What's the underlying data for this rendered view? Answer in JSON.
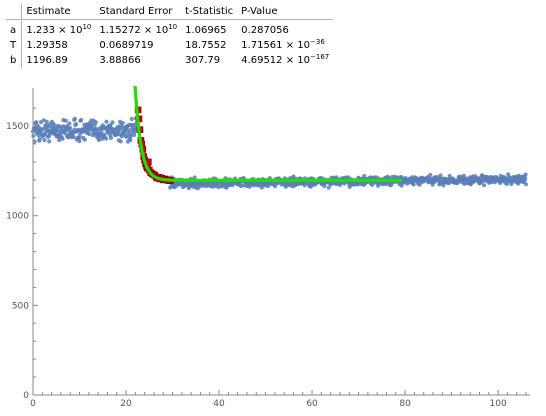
{
  "fit_table": {
    "headers": [
      "",
      "Estimate",
      "Standard Error",
      "t-Statistic",
      "P-Value"
    ],
    "rows": [
      {
        "param": "a",
        "estimate": "1.233 × 10",
        "estimate_exp": "10",
        "std_error": "1.15272 × 10",
        "std_error_exp": "10",
        "t_stat": "1.06965",
        "p_value": "0.287056",
        "p_value_exp": ""
      },
      {
        "param": "T",
        "estimate": "1.29358",
        "estimate_exp": "",
        "std_error": "0.0689719",
        "std_error_exp": "",
        "t_stat": "18.7552",
        "p_value": "1.71561 × 10",
        "p_value_exp": "−36"
      },
      {
        "param": "b",
        "estimate": "1196.89",
        "estimate_exp": "",
        "std_error": "3.88866",
        "std_error_exp": "",
        "t_stat": "307.79",
        "p_value": "4.69512 × 10",
        "p_value_exp": "−167"
      }
    ]
  },
  "chart_data": {
    "type": "scatter",
    "title": "",
    "xlabel": "",
    "ylabel": "",
    "xlim": [
      0,
      106
    ],
    "ylim": [
      0,
      1690
    ],
    "x_ticks": [
      0,
      20,
      40,
      60,
      80,
      100
    ],
    "y_ticks": [
      0,
      500,
      1000,
      1500
    ],
    "x_minor_step": 2,
    "y_minor_step": 100,
    "grid": false,
    "colors": {
      "data": "#5b7fb8",
      "fit_points": "#cc0000",
      "fit_curve": "#22dd00",
      "axis": "#888888"
    },
    "series": [
      {
        "kind": "points",
        "description_level_note": "dense noisy points",
        "segments": [
          {
            "x_range": [
              0,
              22.5
            ],
            "level": 1475,
            "noise": 30
          },
          {
            "x_range": [
              29.5,
              106
            ],
            "level": 1180,
            "slope_per_unit": 0.3,
            "noise": 12
          }
        ]
      },
      {
        "kind": "fit_points",
        "x": [
          22.6,
          22.8,
          23.0,
          23.2,
          23.4,
          23.6,
          23.8,
          24.0,
          24.2,
          24.4,
          24.6,
          24.8,
          25.0,
          25.3,
          25.6,
          25.9,
          26.2,
          26.5,
          26.8,
          27.1,
          27.4,
          27.7,
          28.0,
          28.4,
          28.8,
          29.2,
          29.6
        ],
        "y": [
          1590,
          1540,
          1480,
          1420,
          1400,
          1370,
          1330,
          1310,
          1290,
          1275,
          1265,
          1300,
          1255,
          1240,
          1235,
          1230,
          1225,
          1215,
          1210,
          1215,
          1205,
          1210,
          1200,
          1205,
          1200,
          1195,
          1198
        ]
      },
      {
        "kind": "fit_curve",
        "model": "b + a*exp(-x/T)",
        "x_range": [
          21.9,
          79
        ],
        "params": {
          "a": 12330000000.0,
          "T": 1.29358,
          "b": 1196.89
        }
      }
    ]
  }
}
